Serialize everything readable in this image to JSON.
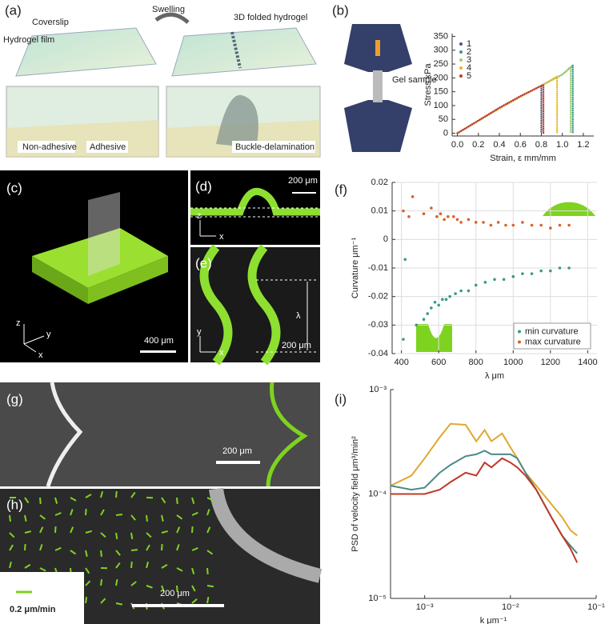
{
  "figure": {
    "a": {
      "label": "(a)",
      "swelling": "Swelling",
      "coverslip": "Coverslip",
      "film": "Hydrogel film",
      "folded": "3D folded hydrogel",
      "nonadhesive": "Non-adhesive",
      "adhesive": "Adhesive",
      "buckle": "Buckle-delamination"
    },
    "b": {
      "label": "(b)",
      "sample": "Gel sample"
    },
    "c": {
      "label": "(c)",
      "z": "z",
      "y": "y",
      "x": "x",
      "scale": "400 μm"
    },
    "d": {
      "label": "(d)",
      "scale": "200 μm",
      "z": "z",
      "x": "x"
    },
    "e": {
      "label": "(e)",
      "lambda": "λ",
      "y": "y",
      "x": "x",
      "scale": "200 μm"
    },
    "f": {
      "label": "(f)"
    },
    "g": {
      "label": "(g)",
      "scale": "200 μm"
    },
    "h": {
      "label": "(h)",
      "arrow": "0.2 μm/min",
      "scale": "200 μm"
    },
    "i": {
      "label": "(i)"
    }
  },
  "chart_data": [
    {
      "type": "line",
      "ylabel": "Stress kPa",
      "xlabel": "Strain, ε mm/mm",
      "xlim": [
        -0.05,
        1.3
      ],
      "ylim": [
        -10,
        360
      ],
      "xticks": [
        {
          "value": 0,
          "label": "0.0"
        },
        0.2,
        0.4,
        0.6,
        0.8,
        {
          "value": 1,
          "label": "1.0"
        },
        1.2
      ],
      "yticks": [
        0,
        50,
        100,
        150,
        200,
        250,
        300,
        350
      ],
      "legend": "upper left",
      "series": [
        {
          "name": "1",
          "color": "#4a5a7a",
          "x": [
            0,
            0.2,
            0.4,
            0.6,
            0.8,
            0.8
          ],
          "values": [
            0,
            45,
            90,
            132,
            172,
            0
          ]
        },
        {
          "name": "2",
          "color": "#3a9a8a",
          "x": [
            0,
            0.2,
            0.4,
            0.6,
            0.8,
            1.0,
            1.1,
            1.1
          ],
          "values": [
            0,
            45,
            90,
            132,
            172,
            212,
            245,
            0
          ]
        },
        {
          "name": "3",
          "color": "#9ccf6a",
          "x": [
            0,
            0.2,
            0.4,
            0.6,
            0.8,
            1.0,
            1.08,
            1.08
          ],
          "values": [
            0,
            45,
            90,
            132,
            172,
            212,
            240,
            0
          ]
        },
        {
          "name": "4",
          "color": "#e8b830",
          "x": [
            0,
            0.2,
            0.4,
            0.6,
            0.8,
            0.95,
            0.95
          ],
          "values": [
            0,
            45,
            90,
            132,
            172,
            205,
            0
          ]
        },
        {
          "name": "5",
          "color": "#c0392b",
          "x": [
            0,
            0.2,
            0.4,
            0.6,
            0.82,
            0.82
          ],
          "values": [
            0,
            46,
            92,
            134,
            175,
            0
          ]
        }
      ]
    },
    {
      "type": "scatter",
      "ylabel": "Curvature μm⁻¹",
      "xlabel": "λ μm",
      "xlim": [
        350,
        1450
      ],
      "ylim": [
        -0.04,
        0.02
      ],
      "xticks": [
        400,
        600,
        800,
        1000,
        1200,
        1400
      ],
      "yticks": [
        -0.04,
        -0.03,
        -0.02,
        -0.01,
        0,
        0.01,
        0.02
      ],
      "grid": true,
      "legend": "lower right",
      "series": [
        {
          "name": "min curvature",
          "color": "#3a9a8a",
          "x": [
            410,
            420,
            480,
            520,
            540,
            560,
            580,
            600,
            620,
            640,
            660,
            690,
            720,
            760,
            800,
            850,
            900,
            950,
            1000,
            1050,
            1100,
            1150,
            1200,
            1250,
            1300
          ],
          "values": [
            -0.035,
            -0.007,
            -0.03,
            -0.028,
            -0.026,
            -0.024,
            -0.022,
            -0.023,
            -0.021,
            -0.021,
            -0.02,
            -0.019,
            -0.018,
            -0.018,
            -0.016,
            -0.015,
            -0.014,
            -0.014,
            -0.013,
            -0.012,
            -0.012,
            -0.011,
            -0.011,
            -0.01,
            -0.01
          ]
        },
        {
          "name": "max curvature",
          "color": "#d9622b",
          "x": [
            410,
            440,
            460,
            520,
            560,
            590,
            610,
            630,
            650,
            680,
            700,
            720,
            760,
            800,
            840,
            880,
            920,
            960,
            1000,
            1050,
            1100,
            1150,
            1200,
            1250,
            1300
          ],
          "values": [
            0.01,
            0.008,
            0.015,
            0.009,
            0.011,
            0.008,
            0.009,
            0.007,
            0.008,
            0.008,
            0.007,
            0.006,
            0.007,
            0.006,
            0.006,
            0.005,
            0.006,
            0.005,
            0.005,
            0.006,
            0.005,
            0.005,
            0.004,
            0.005,
            0.005
          ]
        }
      ]
    },
    {
      "type": "line",
      "ylabel": "PSD of velocity field μm³/min²",
      "xlabel": "k μm⁻¹",
      "xlog": true,
      "ylog": true,
      "xlim": [
        0.0004,
        0.1
      ],
      "ylim": [
        1e-05,
        0.001
      ],
      "xticks": [
        {
          "value": 0.001,
          "label": "10⁻³"
        },
        {
          "value": 0.01,
          "label": "10⁻²"
        },
        {
          "value": 0.1,
          "label": "10⁻¹"
        }
      ],
      "yticks": [
        {
          "value": 1e-05,
          "label": "10⁻⁵"
        },
        {
          "value": 0.0001,
          "label": "10⁻⁴"
        },
        {
          "value": 0.001,
          "label": "10⁻³"
        }
      ],
      "x": [
        0.0004,
        0.0007,
        0.001,
        0.0015,
        0.002,
        0.003,
        0.004,
        0.005,
        0.006,
        0.008,
        0.01,
        0.012,
        0.015,
        0.02,
        0.03,
        0.04,
        0.05,
        0.06
      ],
      "series": [
        {
          "color": "#e0a830",
          "values": [
            0.00012,
            0.00015,
            0.00022,
            0.00035,
            0.00047,
            0.00046,
            0.00032,
            0.00041,
            0.00032,
            0.00038,
            0.00028,
            0.00022,
            0.00016,
            0.00012,
            8e-05,
            6e-05,
            4.5e-05,
            4e-05
          ]
        },
        {
          "color": "#4a8a88",
          "values": [
            0.00012,
            0.00011,
            0.000115,
            0.00016,
            0.00019,
            0.00023,
            0.00024,
            0.00026,
            0.00024,
            0.00024,
            0.00024,
            0.00022,
            0.00016,
            0.00011,
            6e-05,
            4e-05,
            3.2e-05,
            2.7e-05
          ]
        },
        {
          "color": "#c0392b",
          "values": [
            0.0001,
            0.0001,
            0.0001,
            0.00011,
            0.00013,
            0.00016,
            0.00015,
            0.0002,
            0.00018,
            0.00022,
            0.0002,
            0.00018,
            0.00015,
            0.00011,
            6e-05,
            4e-05,
            3e-05,
            2.2e-05
          ]
        }
      ]
    }
  ]
}
